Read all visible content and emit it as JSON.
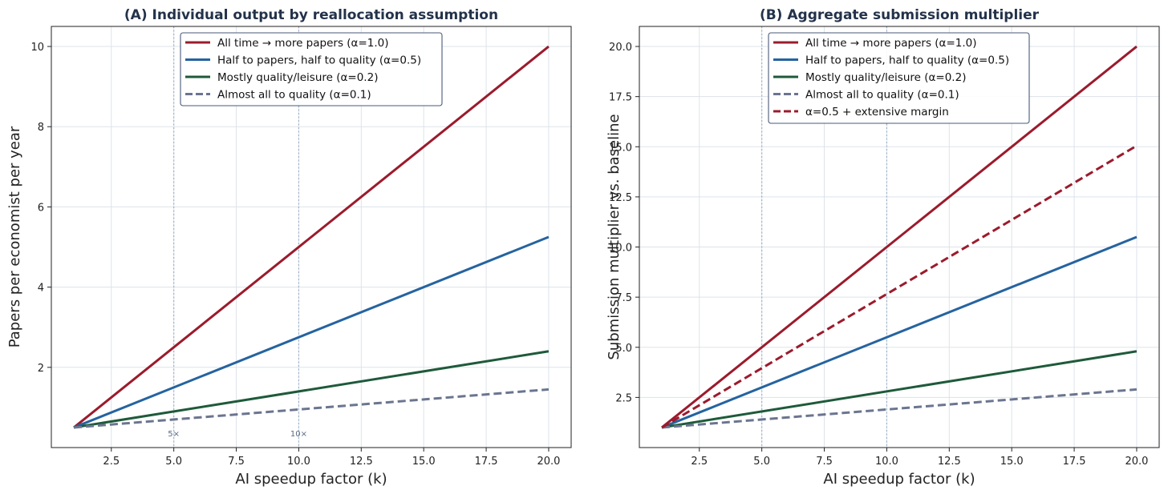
{
  "chart_data": [
    {
      "type": "line",
      "title": "(A) Individual output by reallocation assumption",
      "xlabel": "AI speedup factor (k)",
      "ylabel": "Papers per economist per year",
      "xlim": [
        0.1,
        20.9
      ],
      "ylim": [
        0.0,
        10.5
      ],
      "xticks": [
        2.5,
        5.0,
        7.5,
        10.0,
        12.5,
        15.0,
        17.5,
        20.0
      ],
      "xtick_labels": [
        "2.5",
        "5.0",
        "7.5",
        "10.0",
        "12.5",
        "15.0",
        "17.5",
        "20.0"
      ],
      "yticks": [
        2,
        4,
        6,
        8,
        10
      ],
      "ytick_labels": [
        "2",
        "4",
        "6",
        "8",
        "10"
      ],
      "grid": true,
      "legend_position": "top-center",
      "vlines": [
        {
          "x": 5,
          "label": "5×"
        },
        {
          "x": 10,
          "label": "10×"
        }
      ],
      "series": [
        {
          "name": "All time → more papers (α=1.0)",
          "color": "#9b1b2c",
          "dash": "solid",
          "x": [
            1,
            20
          ],
          "y": [
            0.5,
            10.0
          ]
        },
        {
          "name": "Half to papers, half to quality (α=0.5)",
          "color": "#2563a0",
          "dash": "solid",
          "x": [
            1,
            20
          ],
          "y": [
            0.5,
            5.25
          ]
        },
        {
          "name": "Mostly quality/leisure (α=0.2)",
          "color": "#1e5a3a",
          "dash": "solid",
          "x": [
            1,
            20
          ],
          "y": [
            0.5,
            2.4
          ]
        },
        {
          "name": "Almost all to quality (α=0.1)",
          "color": "#6b7590",
          "dash": "dashed",
          "x": [
            1,
            20
          ],
          "y": [
            0.5,
            1.45
          ]
        }
      ]
    },
    {
      "type": "line",
      "title": "(B) Aggregate submission multiplier",
      "xlabel": "AI speedup factor (k)",
      "ylabel": "Submission multiplier vs. baseline",
      "xlim": [
        0.1,
        20.9
      ],
      "ylim": [
        0.0,
        21.0
      ],
      "xticks": [
        2.5,
        5.0,
        7.5,
        10.0,
        12.5,
        15.0,
        17.5,
        20.0
      ],
      "xtick_labels": [
        "2.5",
        "5.0",
        "7.5",
        "10.0",
        "12.5",
        "15.0",
        "17.5",
        "20.0"
      ],
      "yticks": [
        2.5,
        5.0,
        7.5,
        10.0,
        12.5,
        15.0,
        17.5,
        20.0
      ],
      "ytick_labels": [
        "2.5",
        "5.0",
        "7.5",
        "10.0",
        "12.5",
        "15.0",
        "17.5",
        "20.0"
      ],
      "grid": true,
      "legend_position": "top-center",
      "vlines": [
        {
          "x": 5,
          "label": ""
        },
        {
          "x": 10,
          "label": ""
        }
      ],
      "series": [
        {
          "name": "All time → more papers (α=1.0)",
          "color": "#9b1b2c",
          "dash": "solid",
          "x": [
            1,
            20
          ],
          "y": [
            1.0,
            20.0
          ]
        },
        {
          "name": "Half to papers, half to quality (α=0.5)",
          "color": "#2563a0",
          "dash": "solid",
          "x": [
            1,
            20
          ],
          "y": [
            1.0,
            10.5
          ]
        },
        {
          "name": "Mostly quality/leisure (α=0.2)",
          "color": "#1e5a3a",
          "dash": "solid",
          "x": [
            1,
            20
          ],
          "y": [
            1.0,
            4.8
          ]
        },
        {
          "name": "Almost all to quality (α=0.1)",
          "color": "#6b7590",
          "dash": "dashed",
          "x": [
            1,
            20
          ],
          "y": [
            1.0,
            2.9
          ]
        },
        {
          "name": "α=0.5 + extensive margin",
          "color": "#9b1b2c",
          "dash": "dashed",
          "x": [
            1,
            20
          ],
          "y": [
            1.0,
            15.05
          ]
        }
      ]
    }
  ]
}
